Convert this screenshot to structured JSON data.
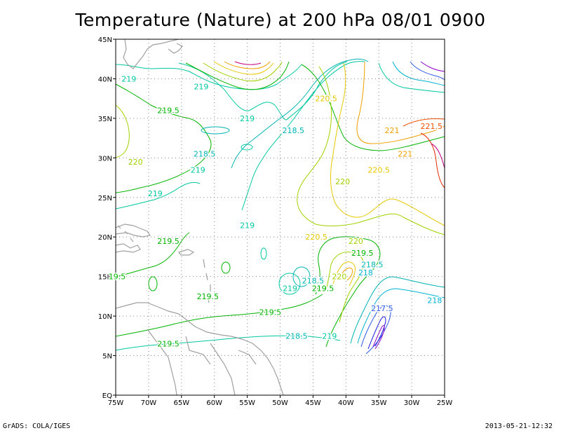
{
  "title": "Temperature (Nature) at 200 hPa 08/01 0900",
  "footer": {
    "left": "GrADS: COLA/IGES",
    "right": "2013-05-21-12:32"
  },
  "axes": {
    "lon_labels": [
      "75W",
      "70W",
      "65W",
      "60W",
      "55W",
      "50W",
      "45W",
      "40W",
      "35W",
      "30W",
      "25W"
    ],
    "lon_values": [
      -75,
      -70,
      -65,
      -60,
      -55,
      -50,
      -45,
      -40,
      -35,
      -30,
      -25
    ],
    "lat_labels": [
      "EQ",
      "5N",
      "10N",
      "15N",
      "20N",
      "25N",
      "30N",
      "35N",
      "40N",
      "45N"
    ],
    "lat_values": [
      0,
      5,
      10,
      15,
      20,
      25,
      30,
      35,
      40,
      45
    ],
    "lon_range": [
      -75,
      -25
    ],
    "lat_range": [
      0,
      45
    ],
    "grid": "dotted"
  },
  "colors": {
    "land": "#a0a0a0",
    "c217": "#1e1ee0",
    "c217_5": "#2d5ae6",
    "c218": "#00b4d2",
    "c218_5": "#00b4b4",
    "c219": "#00c8a0",
    "c219_5": "#00b400",
    "c220": "#a0d200",
    "c220_5": "#e6c800",
    "c221": "#f0a000",
    "c221_5": "#f05000",
    "warm_max": "#c80080",
    "cold_min": "#8c00c8"
  },
  "contour_labels": [
    {
      "text": "219",
      "lon": -73.0,
      "lat": 40.0,
      "color": "c219"
    },
    {
      "text": "219",
      "lon": -62.0,
      "lat": 39.0,
      "color": "c219"
    },
    {
      "text": "219.5",
      "lon": -67.0,
      "lat": 36.0,
      "color": "c219_5"
    },
    {
      "text": "219",
      "lon": -55.0,
      "lat": 35.0,
      "color": "c219"
    },
    {
      "text": "218.5",
      "lon": -61.5,
      "lat": 30.5,
      "color": "c218_5"
    },
    {
      "text": "218.5",
      "lon": -48.0,
      "lat": 33.5,
      "color": "c218_5"
    },
    {
      "text": "220.5",
      "lon": -43.0,
      "lat": 37.5,
      "color": "c220_5"
    },
    {
      "text": "221",
      "lon": -33.0,
      "lat": 33.5,
      "color": "c221"
    },
    {
      "text": "221.5",
      "lon": -27.0,
      "lat": 34.0,
      "color": "c221_5"
    },
    {
      "text": "221",
      "lon": -31.0,
      "lat": 30.5,
      "color": "c221"
    },
    {
      "text": "220",
      "lon": -72.0,
      "lat": 29.5,
      "color": "c220"
    },
    {
      "text": "219",
      "lon": -62.5,
      "lat": 28.5,
      "color": "c219"
    },
    {
      "text": "220.5",
      "lon": -35.0,
      "lat": 28.5,
      "color": "c220_5"
    },
    {
      "text": "220",
      "lon": -40.5,
      "lat": 27.0,
      "color": "c220"
    },
    {
      "text": "219",
      "lon": -69.0,
      "lat": 25.5,
      "color": "c219"
    },
    {
      "text": "219",
      "lon": -55.0,
      "lat": 21.5,
      "color": "c219"
    },
    {
      "text": "220.5",
      "lon": -44.5,
      "lat": 20.0,
      "color": "c220_5"
    },
    {
      "text": "220",
      "lon": -38.5,
      "lat": 19.5,
      "color": "c220"
    },
    {
      "text": "219.5",
      "lon": -67.0,
      "lat": 19.5,
      "color": "c219_5"
    },
    {
      "text": "219.5",
      "lon": -37.5,
      "lat": 18.0,
      "color": "c219_5"
    },
    {
      "text": "218.5",
      "lon": -36.0,
      "lat": 16.5,
      "color": "c218_5"
    },
    {
      "text": "19.5",
      "lon": -75.5,
      "lat": 15.0,
      "color": "c219_5"
    },
    {
      "text": "218",
      "lon": -37.0,
      "lat": 15.5,
      "color": "c218"
    },
    {
      "text": "220",
      "lon": -41.0,
      "lat": 15.0,
      "color": "c220"
    },
    {
      "text": "218.5",
      "lon": -45.0,
      "lat": 14.5,
      "color": "c218_5"
    },
    {
      "text": "219",
      "lon": -48.5,
      "lat": 13.5,
      "color": "c219"
    },
    {
      "text": "219.5",
      "lon": -43.5,
      "lat": 13.5,
      "color": "c219_5"
    },
    {
      "text": "219.5",
      "lon": -61.0,
      "lat": 12.5,
      "color": "c219_5"
    },
    {
      "text": "218",
      "lon": -26.5,
      "lat": 12.0,
      "color": "c218"
    },
    {
      "text": "217.5",
      "lon": -34.5,
      "lat": 11.0,
      "color": "c217_5"
    },
    {
      "text": "219.5",
      "lon": -51.5,
      "lat": 10.5,
      "color": "c219_5"
    },
    {
      "text": "218.5",
      "lon": -47.5,
      "lat": 7.5,
      "color": "c218_5"
    },
    {
      "text": "219",
      "lon": -42.5,
      "lat": 7.5,
      "color": "c219"
    },
    {
      "text": "219.5",
      "lon": -67.0,
      "lat": 6.5,
      "color": "c219_5"
    }
  ]
}
